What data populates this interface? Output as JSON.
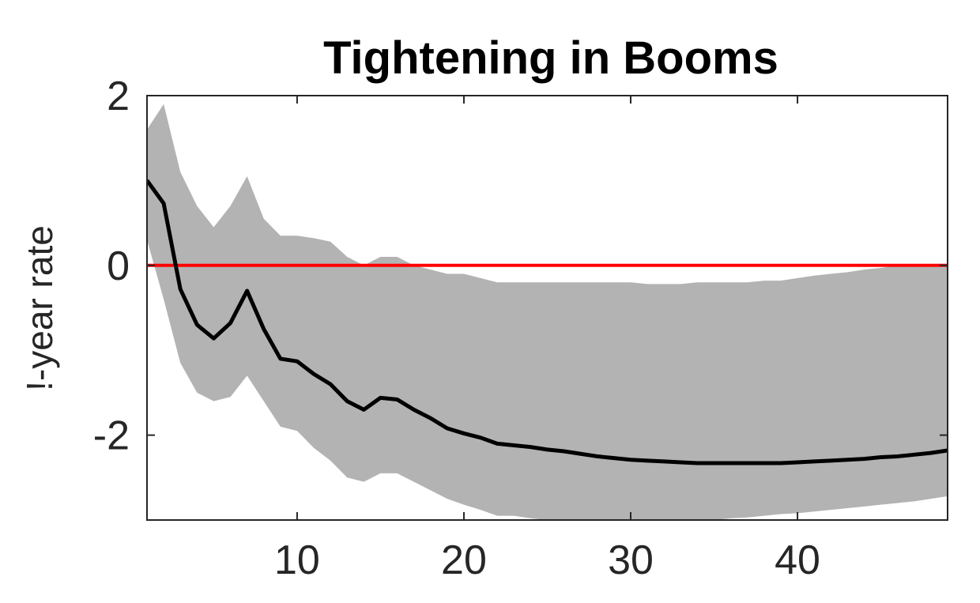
{
  "chart_data": {
    "type": "line",
    "title": "Tightening in Booms",
    "xlabel": "",
    "ylabel": "!-year rate",
    "xlim": [
      1,
      49
    ],
    "ylim": [
      -3,
      2
    ],
    "xticks": [
      10,
      20,
      30,
      40
    ],
    "yticks": [
      2,
      0,
      -2
    ],
    "ytick_labels": [
      "2",
      "0",
      "-2"
    ],
    "grid": false,
    "reference_line": {
      "y": 0,
      "color": "#ff0000"
    },
    "colors": {
      "line": "#000000",
      "band": "#b3b3b3",
      "axes": "#262626"
    },
    "series": [
      {
        "x": [
          1,
          2,
          3,
          4,
          5,
          6,
          7,
          8,
          9,
          10,
          11,
          12,
          13,
          14,
          15,
          16,
          17,
          18,
          19,
          20,
          21,
          22,
          23,
          24,
          25,
          26,
          27,
          28,
          29,
          30,
          31,
          32,
          33,
          34,
          35,
          36,
          37,
          38,
          39,
          40,
          41,
          42,
          43,
          44,
          45,
          46,
          47,
          48,
          49
        ],
        "values": [
          1.0,
          0.73,
          -0.28,
          -0.7,
          -0.86,
          -0.68,
          -0.3,
          -0.75,
          -1.1,
          -1.13,
          -1.28,
          -1.4,
          -1.6,
          -1.7,
          -1.56,
          -1.58,
          -1.7,
          -1.8,
          -1.92,
          -1.98,
          -2.03,
          -2.1,
          -2.12,
          -2.14,
          -2.17,
          -2.19,
          -2.22,
          -2.25,
          -2.27,
          -2.29,
          -2.3,
          -2.31,
          -2.32,
          -2.33,
          -2.33,
          -2.33,
          -2.33,
          -2.33,
          -2.33,
          -2.32,
          -2.31,
          -2.3,
          -2.29,
          -2.28,
          -2.26,
          -2.25,
          -2.23,
          -2.21,
          -2.18
        ]
      }
    ],
    "band": {
      "x": [
        1,
        2,
        3,
        4,
        5,
        6,
        7,
        8,
        9,
        10,
        11,
        12,
        13,
        14,
        15,
        16,
        17,
        18,
        19,
        20,
        21,
        22,
        23,
        24,
        25,
        26,
        27,
        28,
        29,
        30,
        31,
        32,
        33,
        34,
        35,
        36,
        37,
        38,
        39,
        40,
        41,
        42,
        43,
        44,
        45,
        46,
        47,
        48,
        49
      ],
      "upper": [
        1.6,
        1.9,
        1.1,
        0.7,
        0.45,
        0.7,
        1.05,
        0.55,
        0.35,
        0.35,
        0.32,
        0.28,
        0.1,
        0.0,
        0.1,
        0.1,
        0.0,
        -0.05,
        -0.1,
        -0.1,
        -0.15,
        -0.2,
        -0.2,
        -0.2,
        -0.2,
        -0.2,
        -0.2,
        -0.2,
        -0.2,
        -0.2,
        -0.22,
        -0.22,
        -0.22,
        -0.2,
        -0.2,
        -0.2,
        -0.2,
        -0.18,
        -0.18,
        -0.15,
        -0.12,
        -0.1,
        -0.08,
        -0.05,
        -0.03,
        0.0,
        0.0,
        0.0,
        0.0
      ],
      "lower": [
        0.3,
        -0.4,
        -1.15,
        -1.5,
        -1.6,
        -1.55,
        -1.3,
        -1.6,
        -1.9,
        -1.95,
        -2.15,
        -2.3,
        -2.5,
        -2.55,
        -2.45,
        -2.45,
        -2.55,
        -2.65,
        -2.75,
        -2.82,
        -2.88,
        -2.95,
        -2.95,
        -2.98,
        -3.0,
        -3.0,
        -3.02,
        -3.05,
        -3.05,
        -3.05,
        -3.05,
        -3.02,
        -3.02,
        -3.0,
        -3.0,
        -2.98,
        -2.97,
        -2.95,
        -2.93,
        -2.92,
        -2.9,
        -2.88,
        -2.86,
        -2.84,
        -2.82,
        -2.8,
        -2.78,
        -2.75,
        -2.72
      ]
    }
  }
}
